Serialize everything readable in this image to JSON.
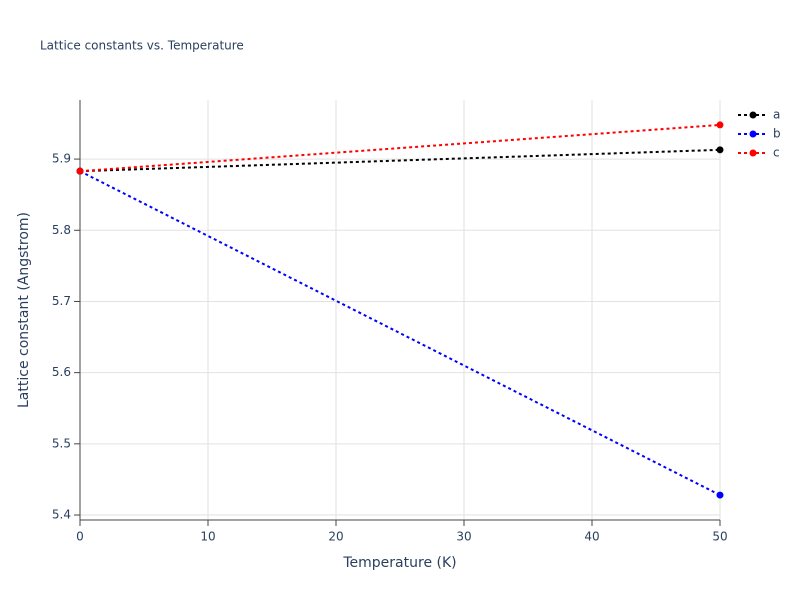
{
  "chart_data": {
    "type": "line",
    "title": "Lattice constants vs. Temperature",
    "x_label": "Temperature (K)",
    "y_label": "Lattice constant (Angstrom)",
    "x": [
      0,
      50
    ],
    "series": [
      {
        "name": "a",
        "color": "#000000",
        "values": [
          5.883,
          5.913
        ]
      },
      {
        "name": "b",
        "color": "#0000ff",
        "values": [
          5.883,
          5.428
        ]
      },
      {
        "name": "c",
        "color": "#ff0000",
        "values": [
          5.883,
          5.948
        ]
      }
    ],
    "xlim": [
      0,
      50
    ],
    "xticks": [
      0,
      10,
      20,
      30,
      40,
      50
    ],
    "ylim": [
      5.393,
      5.983
    ],
    "yticks": [
      5.4,
      5.5,
      5.6,
      5.7,
      5.8,
      5.9
    ],
    "grid": true,
    "legend": "top-right",
    "line_style": "dotted"
  }
}
